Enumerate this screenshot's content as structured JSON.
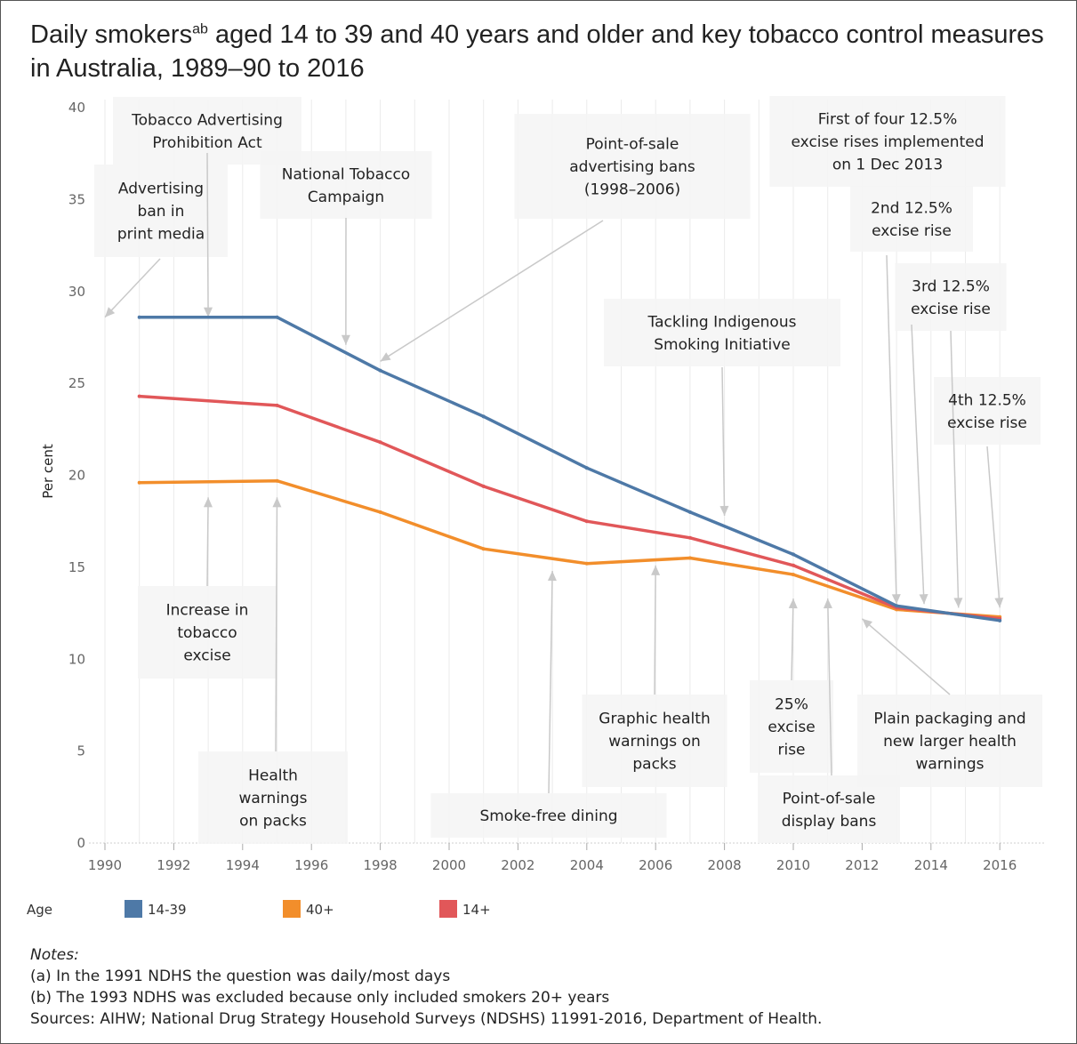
{
  "title_main": "Daily smokers",
  "title_sup": "ab",
  "title_rest": " aged 14 to 39 and 40 years and older and key tobacco control measures in Australia, 1989–90 to 2016",
  "chart_data": {
    "type": "line",
    "ylabel": "Per cent",
    "ylim": [
      0,
      40
    ],
    "xlim": [
      1989.5,
      2017
    ],
    "yticks": [
      0,
      5,
      10,
      15,
      20,
      25,
      30,
      35,
      40
    ],
    "xticks": [
      1990,
      1992,
      1994,
      1996,
      1998,
      2000,
      2002,
      2004,
      2006,
      2008,
      2010,
      2012,
      2014,
      2016
    ],
    "grid": "vertical",
    "series": [
      {
        "name": "14-39",
        "color": "#4e79a7",
        "x": [
          1991,
          1995,
          1998,
          2001,
          2004,
          2007,
          2010,
          2013,
          2016
        ],
        "y": [
          28.6,
          28.6,
          25.7,
          23.2,
          20.4,
          18.0,
          15.7,
          12.9,
          12.1
        ]
      },
      {
        "name": "40+",
        "color": "#f28e2b",
        "x": [
          1991,
          1995,
          1998,
          2001,
          2004,
          2007,
          2010,
          2013,
          2016
        ],
        "y": [
          19.6,
          19.7,
          18.0,
          16.0,
          15.2,
          15.5,
          14.6,
          12.7,
          12.3
        ]
      },
      {
        "name": "14+",
        "color": "#e15759",
        "x": [
          1991,
          1995,
          1998,
          2001,
          2004,
          2007,
          2010,
          2013,
          2016
        ],
        "y": [
          24.3,
          23.8,
          21.8,
          19.4,
          17.5,
          16.6,
          15.1,
          12.8,
          12.2
        ]
      }
    ],
    "legend": {
      "title": "Age",
      "placement": "bottom"
    },
    "annotations": [
      {
        "id": "print-media-ban",
        "lines": [
          "Advertising",
          "ban in",
          "print media"
        ],
        "arrow_to": [
          1990,
          28.6
        ]
      },
      {
        "id": "advertising-prohibition-act",
        "lines": [
          "Tobacco Advertising",
          "Prohibition Act"
        ],
        "arrow_to": [
          1993,
          28.6
        ]
      },
      {
        "id": "national-tobacco-campaign",
        "lines": [
          "National Tobacco",
          "Campaign"
        ],
        "arrow_to": [
          1997,
          27.1
        ]
      },
      {
        "id": "point-of-sale-advertising-bans",
        "lines": [
          "Point-of-sale",
          "advertising bans",
          "(1998–2006)"
        ],
        "arrow_to": [
          1998,
          26.2
        ]
      },
      {
        "id": "first-excise-rise",
        "lines": [
          "First of four 12.5%",
          "excise rises implemented",
          "on 1 Dec 2013"
        ],
        "arrow_to": [
          2013,
          13.0
        ]
      },
      {
        "id": "second-excise-rise",
        "lines": [
          "2nd 12.5%",
          "excise rise"
        ],
        "arrow_to": [
          2013.8,
          13.0
        ]
      },
      {
        "id": "third-excise-rise",
        "lines": [
          "3rd 12.5%",
          "excise rise"
        ],
        "arrow_to": [
          2014.8,
          12.8
        ]
      },
      {
        "id": "fourth-excise-rise",
        "lines": [
          "4th 12.5%",
          "excise rise"
        ],
        "arrow_to": [
          2016,
          12.8
        ]
      },
      {
        "id": "indigenous-smoking-initiative",
        "lines": [
          "Tackling Indigenous",
          "Smoking Initiative"
        ],
        "arrow_to": [
          2008,
          17.8
        ]
      },
      {
        "id": "increase-in-excise",
        "lines": [
          "Increase in",
          "tobacco",
          "excise"
        ],
        "arrow_to": [
          1993,
          18.8
        ]
      },
      {
        "id": "health-warnings-packs",
        "lines": [
          "Health",
          "warnings",
          "on packs"
        ],
        "arrow_to": [
          1995,
          18.8
        ]
      },
      {
        "id": "smoke-free-dining",
        "lines": [
          "Smoke-free dining"
        ],
        "arrow_to": [
          2003,
          14.8
        ]
      },
      {
        "id": "graphic-health-warnings",
        "lines": [
          "Graphic health",
          "warnings on",
          "packs"
        ],
        "arrow_to": [
          2006,
          15.1
        ]
      },
      {
        "id": "excise-rise-25",
        "lines": [
          "25%",
          "excise",
          "rise"
        ],
        "arrow_to": [
          2010,
          13.3
        ]
      },
      {
        "id": "point-of-sale-display-bans",
        "lines": [
          "Point-of-sale",
          "display bans"
        ],
        "arrow_to": [
          2011,
          13.3
        ]
      },
      {
        "id": "plain-packaging",
        "lines": [
          "Plain packaging and",
          "new larger health",
          "warnings"
        ],
        "arrow_to": [
          2012,
          12.2
        ]
      }
    ]
  },
  "notes": {
    "heading": "Notes:",
    "lines": [
      "(a) In the 1991 NDHS the question was daily/most days",
      "(b) The 1993 NDHS was excluded because only included smokers 20+ years",
      "Sources: AIHW; National Drug Strategy Household Surveys (NDSHS) 11991-2016, Department of Health."
    ]
  }
}
